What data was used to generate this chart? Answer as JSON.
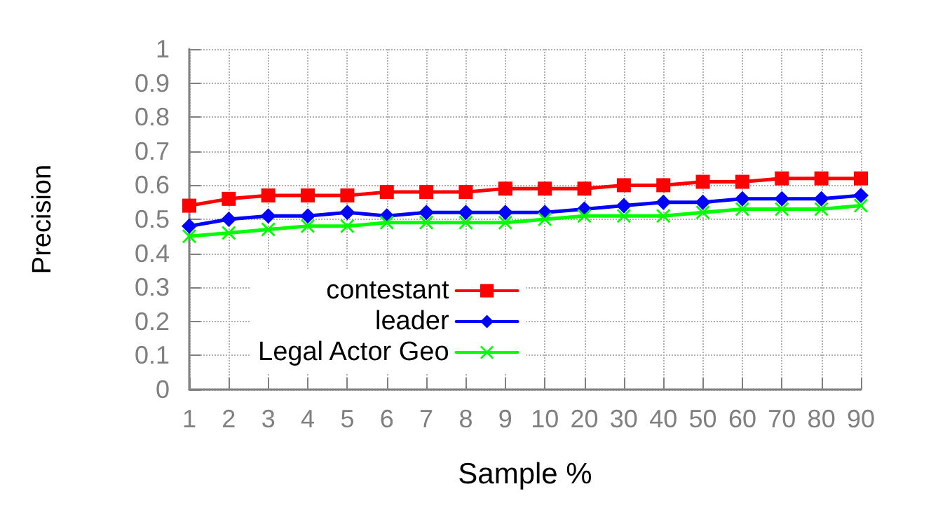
{
  "chart_data": {
    "type": "line",
    "xlabel": "Sample %",
    "ylabel": "Precision",
    "categories": [
      "1",
      "2",
      "3",
      "4",
      "5",
      "6",
      "7",
      "8",
      "9",
      "10",
      "20",
      "30",
      "40",
      "50",
      "60",
      "70",
      "80",
      "90"
    ],
    "series": [
      {
        "name": "contestant",
        "color": "#ff0000",
        "marker": "square",
        "values": [
          0.54,
          0.56,
          0.57,
          0.57,
          0.57,
          0.58,
          0.58,
          0.58,
          0.59,
          0.59,
          0.59,
          0.6,
          0.6,
          0.61,
          0.61,
          0.62,
          0.62,
          0.62
        ]
      },
      {
        "name": "leader",
        "color": "#0000ff",
        "marker": "diamond",
        "values": [
          0.48,
          0.5,
          0.51,
          0.51,
          0.52,
          0.51,
          0.52,
          0.52,
          0.52,
          0.52,
          0.53,
          0.54,
          0.55,
          0.55,
          0.56,
          0.56,
          0.56,
          0.57
        ]
      },
      {
        "name": "Legal Actor Geo",
        "color": "#00ff00",
        "marker": "cross",
        "values": [
          0.45,
          0.46,
          0.47,
          0.48,
          0.48,
          0.49,
          0.49,
          0.49,
          0.49,
          0.5,
          0.51,
          0.51,
          0.51,
          0.52,
          0.53,
          0.53,
          0.53,
          0.54
        ]
      }
    ],
    "ylim": [
      0,
      1
    ],
    "yticks": [
      0,
      0.1,
      0.2,
      0.3,
      0.4,
      0.5,
      0.6,
      0.7,
      0.8,
      0.9,
      1
    ],
    "grid": true,
    "legend": "bottom left",
    "line_style": "solid"
  }
}
